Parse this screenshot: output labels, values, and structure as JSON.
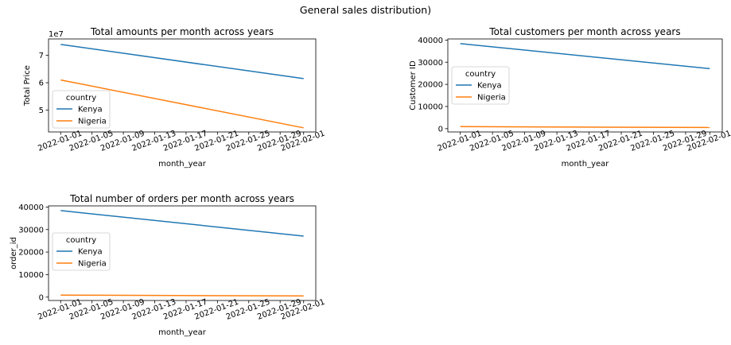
{
  "figure": {
    "suptitle": "General sales distribution)"
  },
  "chart_data": [
    {
      "type": "line",
      "title": "Total amounts per month across years",
      "xlabel": "month_year",
      "ylabel": "Total Price",
      "offset_text": "1e7",
      "x": [
        "2022-01-01",
        "2022-02-01"
      ],
      "xticks": [
        "2022-01-01",
        "2022-01-05",
        "2022-01-09",
        "2022-01-13",
        "2022-01-17",
        "2022-01-21",
        "2022-01-25",
        "2022-01-29",
        "2022-02-01"
      ],
      "yticks": [
        5,
        6,
        7
      ],
      "ylim": [
        4.2,
        7.6
      ],
      "grid": false,
      "legend": {
        "title": "country",
        "placement": "lower-left"
      },
      "series": [
        {
          "name": "Kenya",
          "color": "#1f77b4",
          "values": [
            7.4,
            6.15
          ]
        },
        {
          "name": "Nigeria",
          "color": "#ff7f0e",
          "values": [
            6.1,
            4.35
          ]
        }
      ]
    },
    {
      "type": "line",
      "title": "Total customers per month across years",
      "xlabel": "month_year",
      "ylabel": "Customer ID",
      "x": [
        "2022-01-01",
        "2022-02-01"
      ],
      "xticks": [
        "2022-01-01",
        "2022-01-05",
        "2022-01-09",
        "2022-01-13",
        "2022-01-17",
        "2022-01-21",
        "2022-01-25",
        "2022-01-29",
        "2022-02-01"
      ],
      "yticks": [
        0,
        10000,
        20000,
        30000,
        40000
      ],
      "ylim": [
        -1500,
        40500
      ],
      "grid": false,
      "legend": {
        "title": "country",
        "placement": "center-left"
      },
      "series": [
        {
          "name": "Kenya",
          "color": "#1f77b4",
          "values": [
            38400,
            27100
          ]
        },
        {
          "name": "Nigeria",
          "color": "#ff7f0e",
          "values": [
            900,
            500
          ]
        }
      ]
    },
    {
      "type": "line",
      "title": "Total number of orders per month across years",
      "xlabel": "month_year",
      "ylabel": "order_id",
      "x": [
        "2022-01-01",
        "2022-02-01"
      ],
      "xticks": [
        "2022-01-01",
        "2022-01-05",
        "2022-01-09",
        "2022-01-13",
        "2022-01-17",
        "2022-01-21",
        "2022-01-25",
        "2022-01-29",
        "2022-02-01"
      ],
      "yticks": [
        0,
        10000,
        20000,
        30000,
        40000
      ],
      "ylim": [
        -1500,
        40500
      ],
      "grid": false,
      "legend": {
        "title": "country",
        "placement": "center-left"
      },
      "series": [
        {
          "name": "Kenya",
          "color": "#1f77b4",
          "values": [
            38400,
            27100
          ]
        },
        {
          "name": "Nigeria",
          "color": "#ff7f0e",
          "values": [
            900,
            500
          ]
        }
      ]
    }
  ]
}
